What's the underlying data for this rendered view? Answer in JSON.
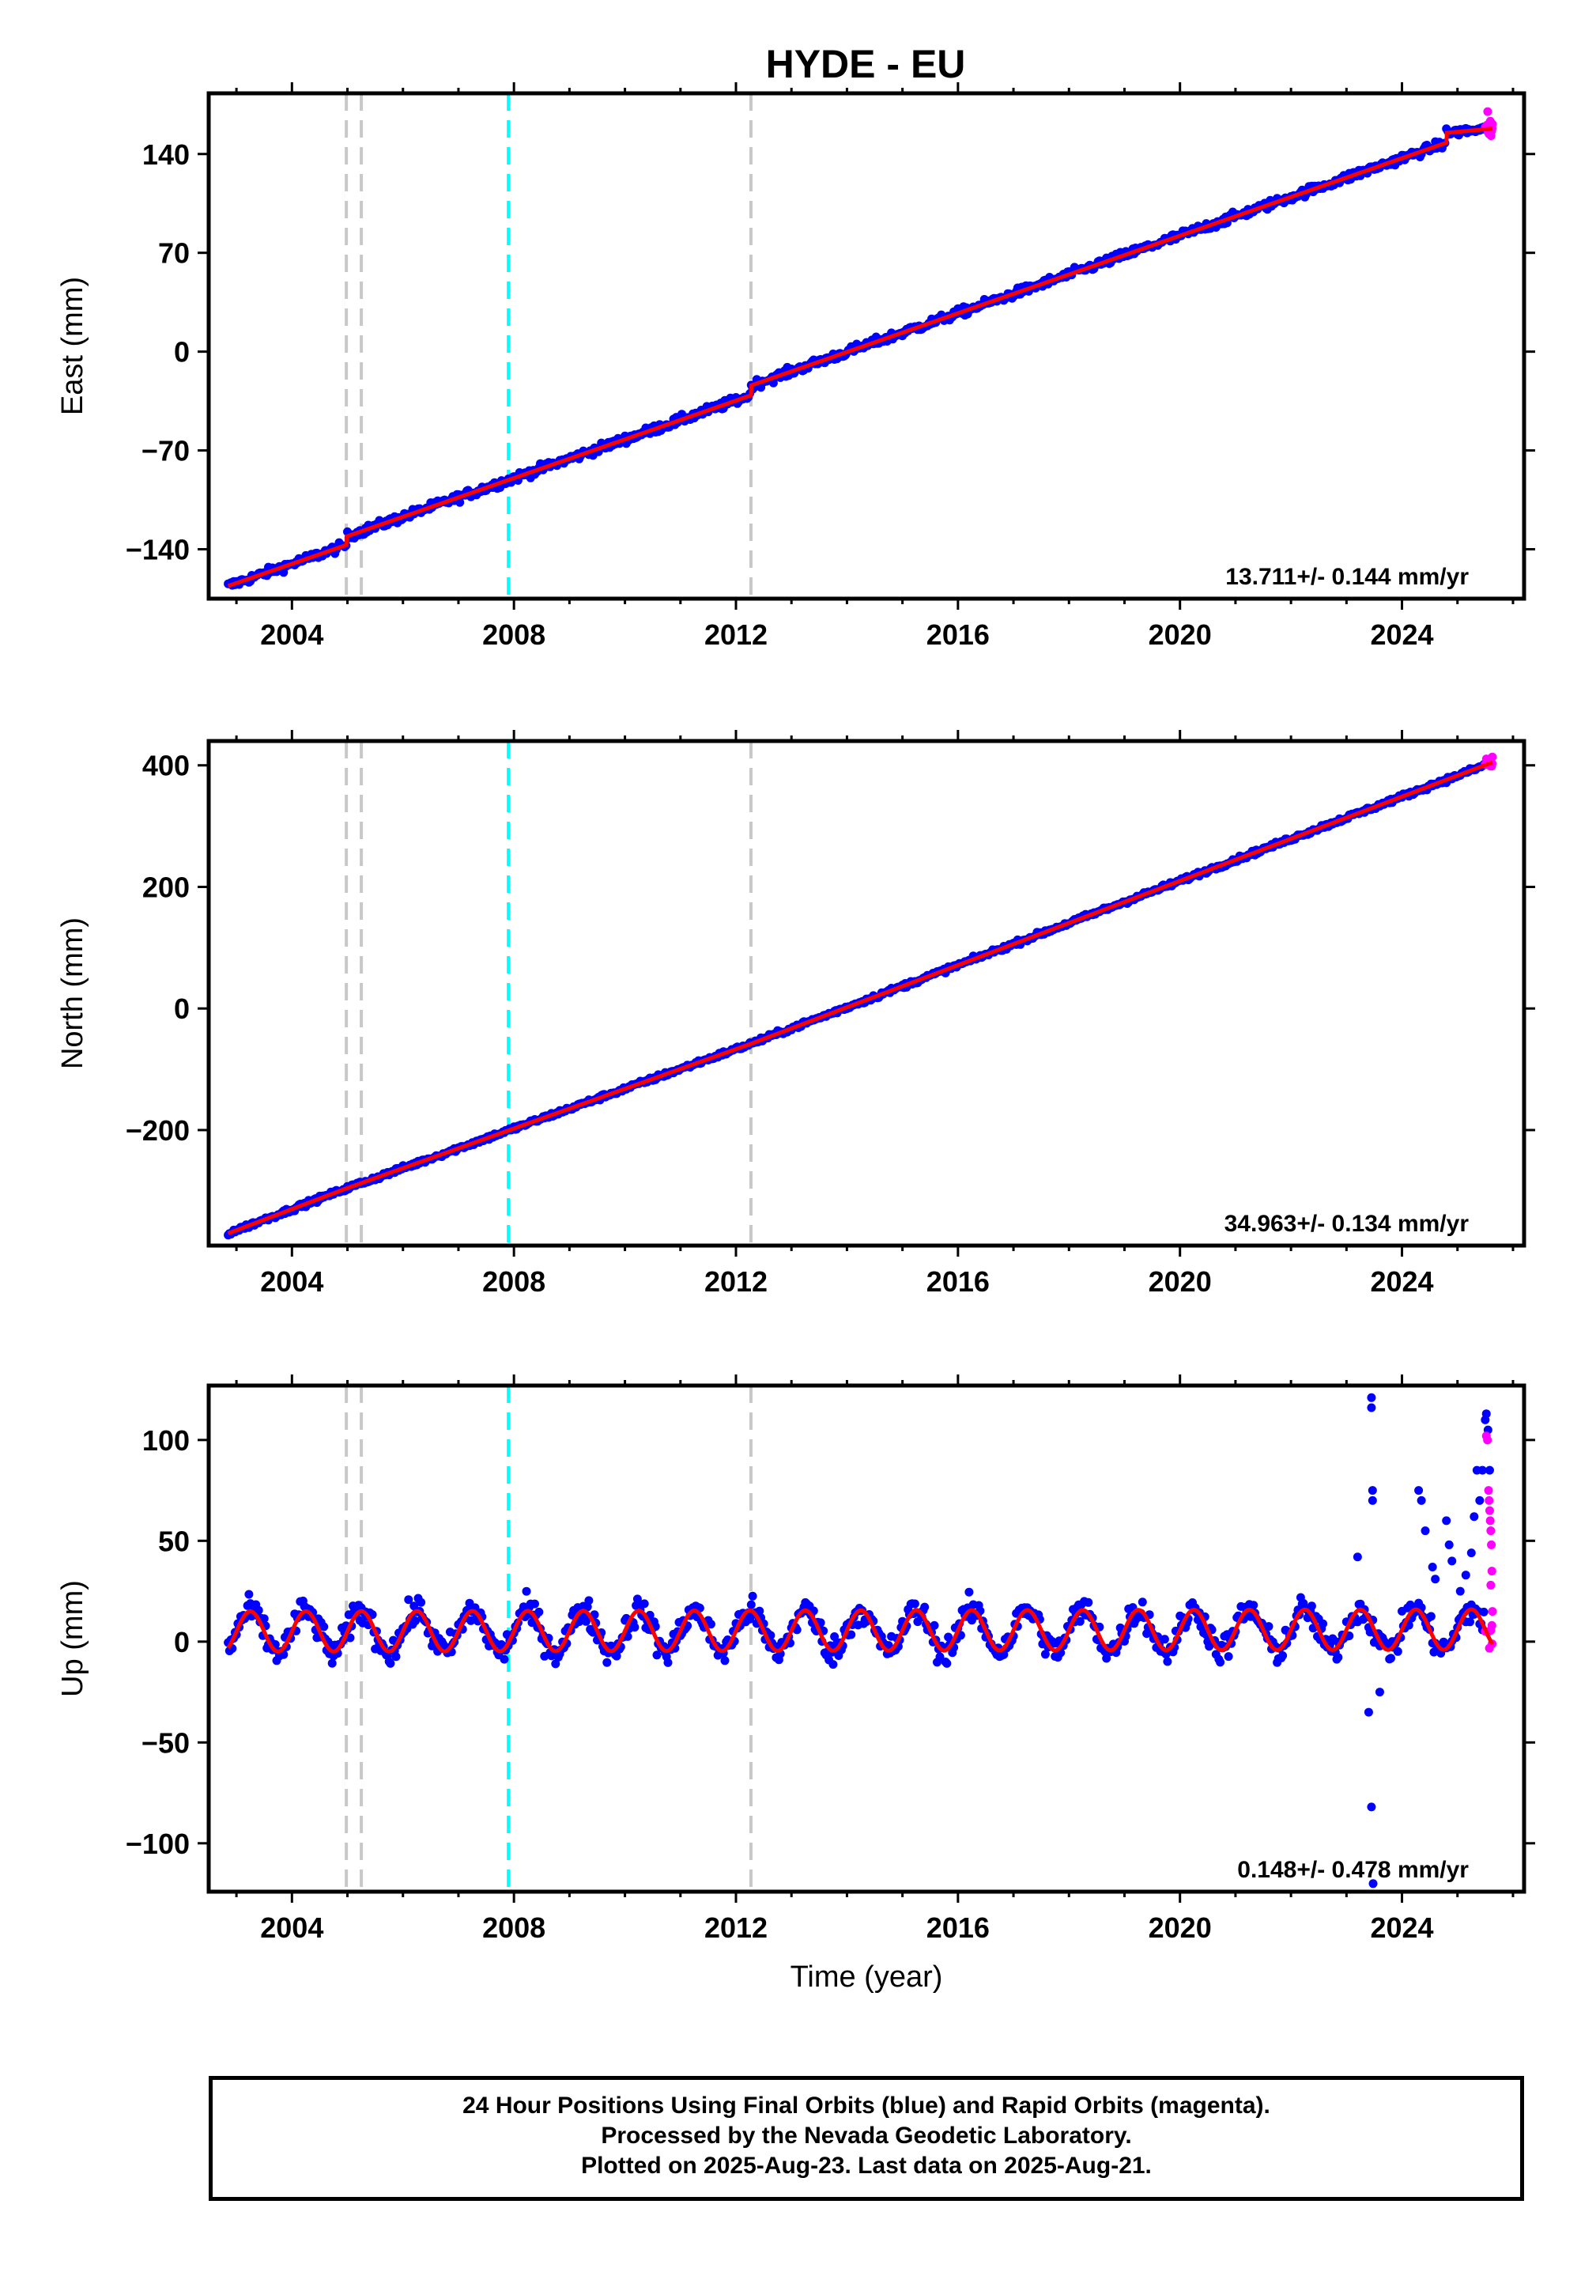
{
  "figure": {
    "title": "HYDE - EU",
    "footer_lines": [
      "24 Hour Positions Using Final Orbits (blue) and Rapid Orbits (magenta).",
      "Processed by the Nevada Geodetic Laboratory.",
      "Plotted on 2025-Aug-23. Last data on 2025-Aug-21."
    ]
  },
  "colors": {
    "final_orbits": "#0000ff",
    "rapid_orbits": "#ff00ff",
    "model_fit": "#ff0000",
    "equipment_change": "#c8c8c8",
    "earthquake": "#00ffff"
  },
  "chart_data": [
    {
      "type": "scatter",
      "component": "east",
      "ylabel": "East (mm)",
      "xlabel": "",
      "xlim": [
        2002.5,
        2026.2
      ],
      "ylim": [
        -175,
        183
      ],
      "xticks": [
        2004,
        2008,
        2012,
        2016,
        2020,
        2024
      ],
      "xtick_labels": [
        "2004",
        "2008",
        "2012",
        "2016",
        "2020",
        "2024"
      ],
      "yticks": [
        -140,
        -70,
        0,
        70,
        140
      ],
      "ytick_labels": [
        "−140",
        "−70",
        "0",
        "70",
        "140"
      ],
      "rate_text": "13.711+/- 0.144 mm/yr",
      "data_start": 2002.85,
      "data_end": 2025.63,
      "rapid_start": 2025.5,
      "offsets": [
        {
          "year": 2004.98,
          "value": 6
        },
        {
          "year": 2012.27,
          "value": 7
        },
        {
          "year": 2024.8,
          "value": 7
        }
      ],
      "vlines": [
        {
          "year": 2004.98,
          "kind": "equipment_change"
        },
        {
          "year": 2005.25,
          "kind": "equipment_change"
        },
        {
          "year": 2007.9,
          "kind": "earthquake"
        },
        {
          "year": 2012.27,
          "kind": "equipment_change"
        }
      ],
      "series": [
        {
          "name": "Model fit",
          "x": [
            2002.85,
            2004.98,
            2004.98,
            2012.27,
            2012.27,
            2024.8,
            2024.8,
            2025.63
          ],
          "values": [
            -166,
            -137,
            -131,
            -31,
            -24,
            148,
            155,
            158
          ]
        }
      ]
    },
    {
      "type": "scatter",
      "component": "north",
      "ylabel": "North (mm)",
      "xlabel": "",
      "xlim": [
        2002.5,
        2026.2
      ],
      "ylim": [
        -390,
        440
      ],
      "xticks": [
        2004,
        2008,
        2012,
        2016,
        2020,
        2024
      ],
      "xtick_labels": [
        "2004",
        "2008",
        "2012",
        "2016",
        "2020",
        "2024"
      ],
      "yticks": [
        -200,
        0,
        200,
        400
      ],
      "ytick_labels": [
        "−200",
        "0",
        "200",
        "400"
      ],
      "rate_text": "34.963+/- 0.134 mm/yr",
      "data_start": 2002.85,
      "data_end": 2025.63,
      "rapid_start": 2025.5,
      "offsets": [],
      "vlines": [
        {
          "year": 2004.98,
          "kind": "equipment_change"
        },
        {
          "year": 2005.25,
          "kind": "equipment_change"
        },
        {
          "year": 2007.9,
          "kind": "earthquake"
        },
        {
          "year": 2012.27,
          "kind": "equipment_change"
        }
      ],
      "series": [
        {
          "name": "Model fit",
          "x": [
            2002.85,
            2004.98,
            2012.27,
            2025.63
          ],
          "values": [
            -370,
            -296,
            -58,
            405
          ]
        }
      ]
    },
    {
      "type": "scatter",
      "component": "up",
      "ylabel": "Up (mm)",
      "xlabel": "Time (year)",
      "xlim": [
        2002.5,
        2026.2
      ],
      "ylim": [
        -124,
        127
      ],
      "xticks": [
        2004,
        2008,
        2012,
        2016,
        2020,
        2024
      ],
      "xtick_labels": [
        "2004",
        "2008",
        "2012",
        "2016",
        "2020",
        "2024"
      ],
      "yticks": [
        -100,
        -50,
        0,
        50,
        100
      ],
      "ytick_labels": [
        "−100",
        "−50",
        "0",
        "50",
        "100"
      ],
      "rate_text": "0.148+/- 0.478 mm/yr",
      "data_start": 2002.85,
      "data_end": 2025.63,
      "rapid_start": 2025.5,
      "seasonal_amplitude": 10,
      "vlines": [
        {
          "year": 2004.98,
          "kind": "equipment_change"
        },
        {
          "year": 2005.25,
          "kind": "equipment_change"
        },
        {
          "year": 2007.9,
          "kind": "earthquake"
        },
        {
          "year": 2012.27,
          "kind": "equipment_change"
        }
      ],
      "outliers": [
        {
          "x": 2023.45,
          "y": 121
        },
        {
          "x": 2023.45,
          "y": 116
        },
        {
          "x": 2023.47,
          "y": 75
        },
        {
          "x": 2023.47,
          "y": 70
        },
        {
          "x": 2023.4,
          "y": -35
        },
        {
          "x": 2023.45,
          "y": -82
        },
        {
          "x": 2023.48,
          "y": -120
        },
        {
          "x": 2023.2,
          "y": 42
        },
        {
          "x": 2023.6,
          "y": -25
        },
        {
          "x": 2024.3,
          "y": 75
        },
        {
          "x": 2024.35,
          "y": 70
        },
        {
          "x": 2024.42,
          "y": 55
        },
        {
          "x": 2024.55,
          "y": 37
        },
        {
          "x": 2024.6,
          "y": 31
        },
        {
          "x": 2024.8,
          "y": 60
        },
        {
          "x": 2024.85,
          "y": 48
        },
        {
          "x": 2024.9,
          "y": 40
        },
        {
          "x": 2025.05,
          "y": 25
        },
        {
          "x": 2025.15,
          "y": 33
        },
        {
          "x": 2025.25,
          "y": 44
        },
        {
          "x": 2025.3,
          "y": 62
        },
        {
          "x": 2025.35,
          "y": 85
        },
        {
          "x": 2025.4,
          "y": 70
        },
        {
          "x": 2025.45,
          "y": 85
        },
        {
          "x": 2025.5,
          "y": 110
        },
        {
          "x": 2025.52,
          "y": 113
        },
        {
          "x": 2025.55,
          "y": 105
        },
        {
          "x": 2025.58,
          "y": 85
        }
      ],
      "rapid_points": [
        {
          "x": 2025.52,
          "y": 102
        },
        {
          "x": 2025.54,
          "y": 100
        },
        {
          "x": 2025.56,
          "y": 75
        },
        {
          "x": 2025.57,
          "y": 70
        },
        {
          "x": 2025.58,
          "y": 65
        },
        {
          "x": 2025.59,
          "y": 60
        },
        {
          "x": 2025.6,
          "y": 55
        },
        {
          "x": 2025.61,
          "y": 48
        },
        {
          "x": 2025.62,
          "y": 35
        },
        {
          "x": 2025.6,
          "y": 28
        },
        {
          "x": 2025.63,
          "y": 15
        },
        {
          "x": 2025.62,
          "y": 8
        }
      ],
      "series": [
        {
          "name": "Model fit",
          "x": [
            2002.85,
            2025.63
          ],
          "values": [
            5,
            6
          ]
        }
      ]
    }
  ]
}
